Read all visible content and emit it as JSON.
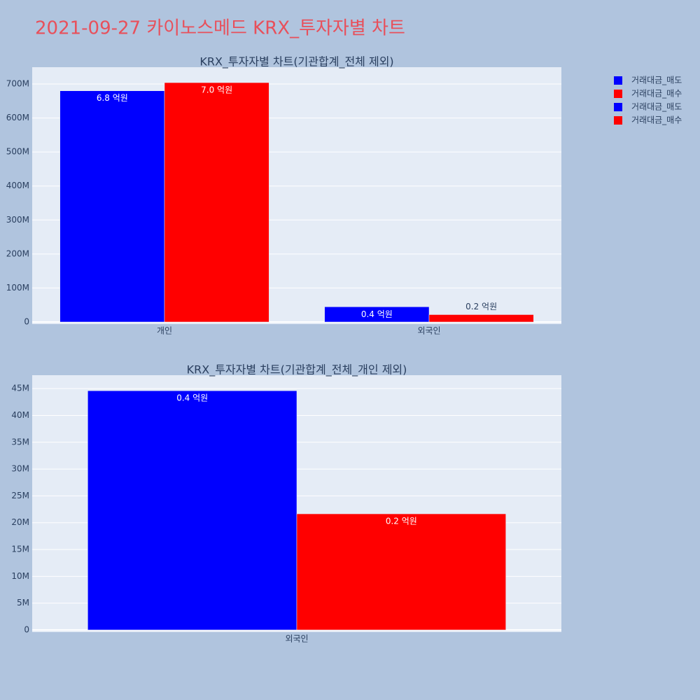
{
  "title": "2021-09-27 카이노스메드 KRX_투자자별 차트",
  "chart_data": [
    {
      "type": "bar",
      "title": "KRX_투자자별 차트(기관합계_전체 제외)",
      "categories": [
        "개인",
        "외국인"
      ],
      "series": [
        {
          "name": "거래대금_매도",
          "color": "#0000ff",
          "values": [
            680000000,
            44600000
          ],
          "value_labels": [
            "6.8 억원",
            "0.4 억원"
          ]
        },
        {
          "name": "거래대금_매수",
          "color": "#ff0000",
          "values": [
            704000000,
            21650000
          ],
          "value_labels": [
            "7.0 억원",
            "0.2 억원"
          ]
        }
      ],
      "ylim": [
        -6200000,
        749400000
      ],
      "yticks": [
        0,
        {
          "value": 100000000,
          "label": "100M"
        },
        {
          "value": 200000000,
          "label": "200M"
        },
        {
          "value": 300000000,
          "label": "300M"
        },
        {
          "value": 400000000,
          "label": "400M"
        },
        {
          "value": 500000000,
          "label": "500M"
        },
        {
          "value": 600000000,
          "label": "600M"
        },
        {
          "value": 700000000,
          "label": "700M"
        }
      ],
      "grid": true,
      "legend": "right"
    },
    {
      "type": "bar",
      "title": "KRX_투자자별 차트(기관합계_전체_개인 제외)",
      "categories": [
        "외국인"
      ],
      "series": [
        {
          "name": "거래대금_매도",
          "color": "#0000ff",
          "values": [
            44600000
          ],
          "value_labels": [
            "0.4 억원"
          ]
        },
        {
          "name": "거래대금_매수",
          "color": "#ff0000",
          "values": [
            21650000
          ],
          "value_labels": [
            "0.2 억원"
          ]
        }
      ],
      "ylim": [
        -400000,
        47500000
      ],
      "yticks": [
        0,
        {
          "value": 5000000,
          "label": "5M"
        },
        {
          "value": 10000000,
          "label": "10M"
        },
        {
          "value": 15000000,
          "label": "15M"
        },
        {
          "value": 20000000,
          "label": "20M"
        },
        {
          "value": 25000000,
          "label": "25M"
        },
        {
          "value": 30000000,
          "label": "30M"
        },
        {
          "value": 35000000,
          "label": "35M"
        },
        {
          "value": 40000000,
          "label": "40M"
        },
        {
          "value": 45000000,
          "label": "45M"
        }
      ],
      "grid": true,
      "legend": "right"
    }
  ]
}
